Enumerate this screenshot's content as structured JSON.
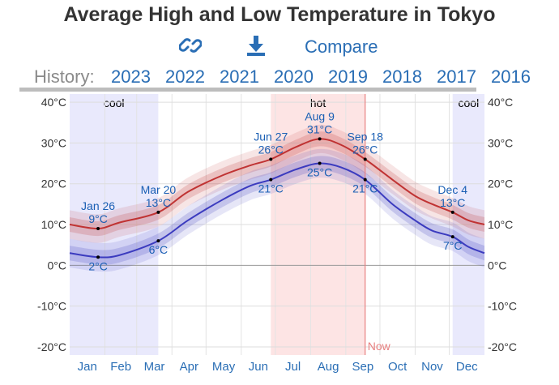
{
  "header": {
    "title": "Average High and Low Temperature in Tokyo",
    "link_icon": "link-icon",
    "download_icon": "download-icon",
    "compare_label": "Compare"
  },
  "history": {
    "label": "History:",
    "years": [
      "2023",
      "2022",
      "2021",
      "2020",
      "2019",
      "2018",
      "2017",
      "2016"
    ]
  },
  "colors": {
    "high": "#c03333",
    "low": "#3b3bbf",
    "hot_band": "#fde4e4",
    "cool_band": "#e9e9fc",
    "now_line": "#e88080",
    "accent": "#2a6eb5"
  },
  "chart_data": {
    "type": "line",
    "title": "Average High and Low Temperature in Tokyo",
    "xlabel": "",
    "ylabel": "",
    "x_unit": "day_of_year",
    "x_domain": [
      1,
      366
    ],
    "ylim": [
      -22,
      42
    ],
    "y_ticks": [
      40,
      30,
      20,
      10,
      0,
      -10,
      -20
    ],
    "y_tick_labels": [
      "40°C",
      "30°C",
      "20°C",
      "10°C",
      "0°C",
      "-10°C",
      "-20°C"
    ],
    "months": [
      "Jan",
      "Feb",
      "Mar",
      "Apr",
      "May",
      "Jun",
      "Jul",
      "Aug",
      "Sep",
      "Oct",
      "Nov",
      "Dec"
    ],
    "grid": true,
    "series": [
      {
        "key": "high",
        "x": [
          1,
          26,
          45,
          79,
          105,
          135,
          160,
          178,
          200,
          221,
          240,
          261,
          285,
          305,
          320,
          338,
          352,
          366
        ],
        "values": [
          10,
          9,
          10.5,
          13,
          18,
          22,
          24.5,
          26,
          29,
          31,
          29.5,
          26,
          21,
          17,
          15,
          13,
          11,
          10
        ]
      },
      {
        "key": "low",
        "x": [
          1,
          26,
          45,
          79,
          105,
          135,
          160,
          178,
          200,
          221,
          240,
          261,
          285,
          305,
          320,
          338,
          352,
          366
        ],
        "values": [
          3,
          2,
          2.5,
          6,
          11,
          16,
          19.5,
          21,
          23.5,
          25,
          24,
          21,
          15,
          11,
          8.5,
          7,
          4.5,
          3
        ]
      }
    ],
    "seasons": [
      {
        "label": "cool",
        "start": 1,
        "end": 79
      },
      {
        "label": "hot",
        "start": 178,
        "end": 261
      },
      {
        "label": "cool",
        "start": 338,
        "end": 366
      }
    ],
    "annotations": [
      {
        "date": "Jan 26",
        "high": "9°C",
        "low": "2°C",
        "day": 26,
        "high_value": 9,
        "low_value": 2
      },
      {
        "date": "Mar 20",
        "high": "13°C",
        "low": "6°C",
        "day": 79,
        "high_value": 13,
        "low_value": 6
      },
      {
        "date": "Jun 27",
        "high": "26°C",
        "low": "21°C",
        "day": 178,
        "high_value": 26,
        "low_value": 21
      },
      {
        "date": "Aug 9",
        "high": "31°C",
        "low": "25°C",
        "day": 221,
        "high_value": 31,
        "low_value": 25
      },
      {
        "date": "Sep 18",
        "high": "26°C",
        "low": "21°C",
        "day": 261,
        "high_value": 26,
        "low_value": 21
      },
      {
        "date": "Dec 4",
        "high": "13°C",
        "low": "7°C",
        "day": 338,
        "high_value": 13,
        "low_value": 7
      }
    ],
    "now": {
      "label": "Now",
      "day": 261
    }
  }
}
